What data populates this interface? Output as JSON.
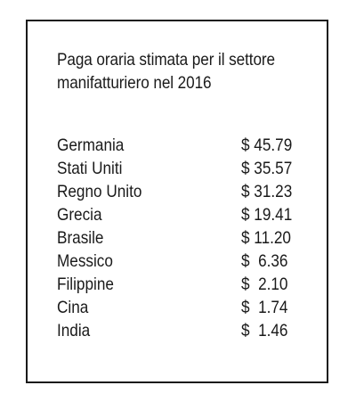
{
  "title_lines": [
    "Paga oraria stimata per il settore",
    "manifatturiero nel 2016"
  ],
  "rows": [
    {
      "country": "Germania",
      "wage": "$ 45.79"
    },
    {
      "country": "Stati Uniti",
      "wage": "$ 35.57"
    },
    {
      "country": "Regno Unito",
      "wage": "$ 31.23"
    },
    {
      "country": "Grecia",
      "wage": "$ 19.41"
    },
    {
      "country": "Brasile",
      "wage": "$ 11.20"
    },
    {
      "country": "Messico",
      "wage": "$  6.36"
    },
    {
      "country": "Filippine",
      "wage": "$  2.10"
    },
    {
      "country": "Cina",
      "wage": "$  1.74"
    },
    {
      "country": "India",
      "wage": "$  1.46"
    }
  ]
}
